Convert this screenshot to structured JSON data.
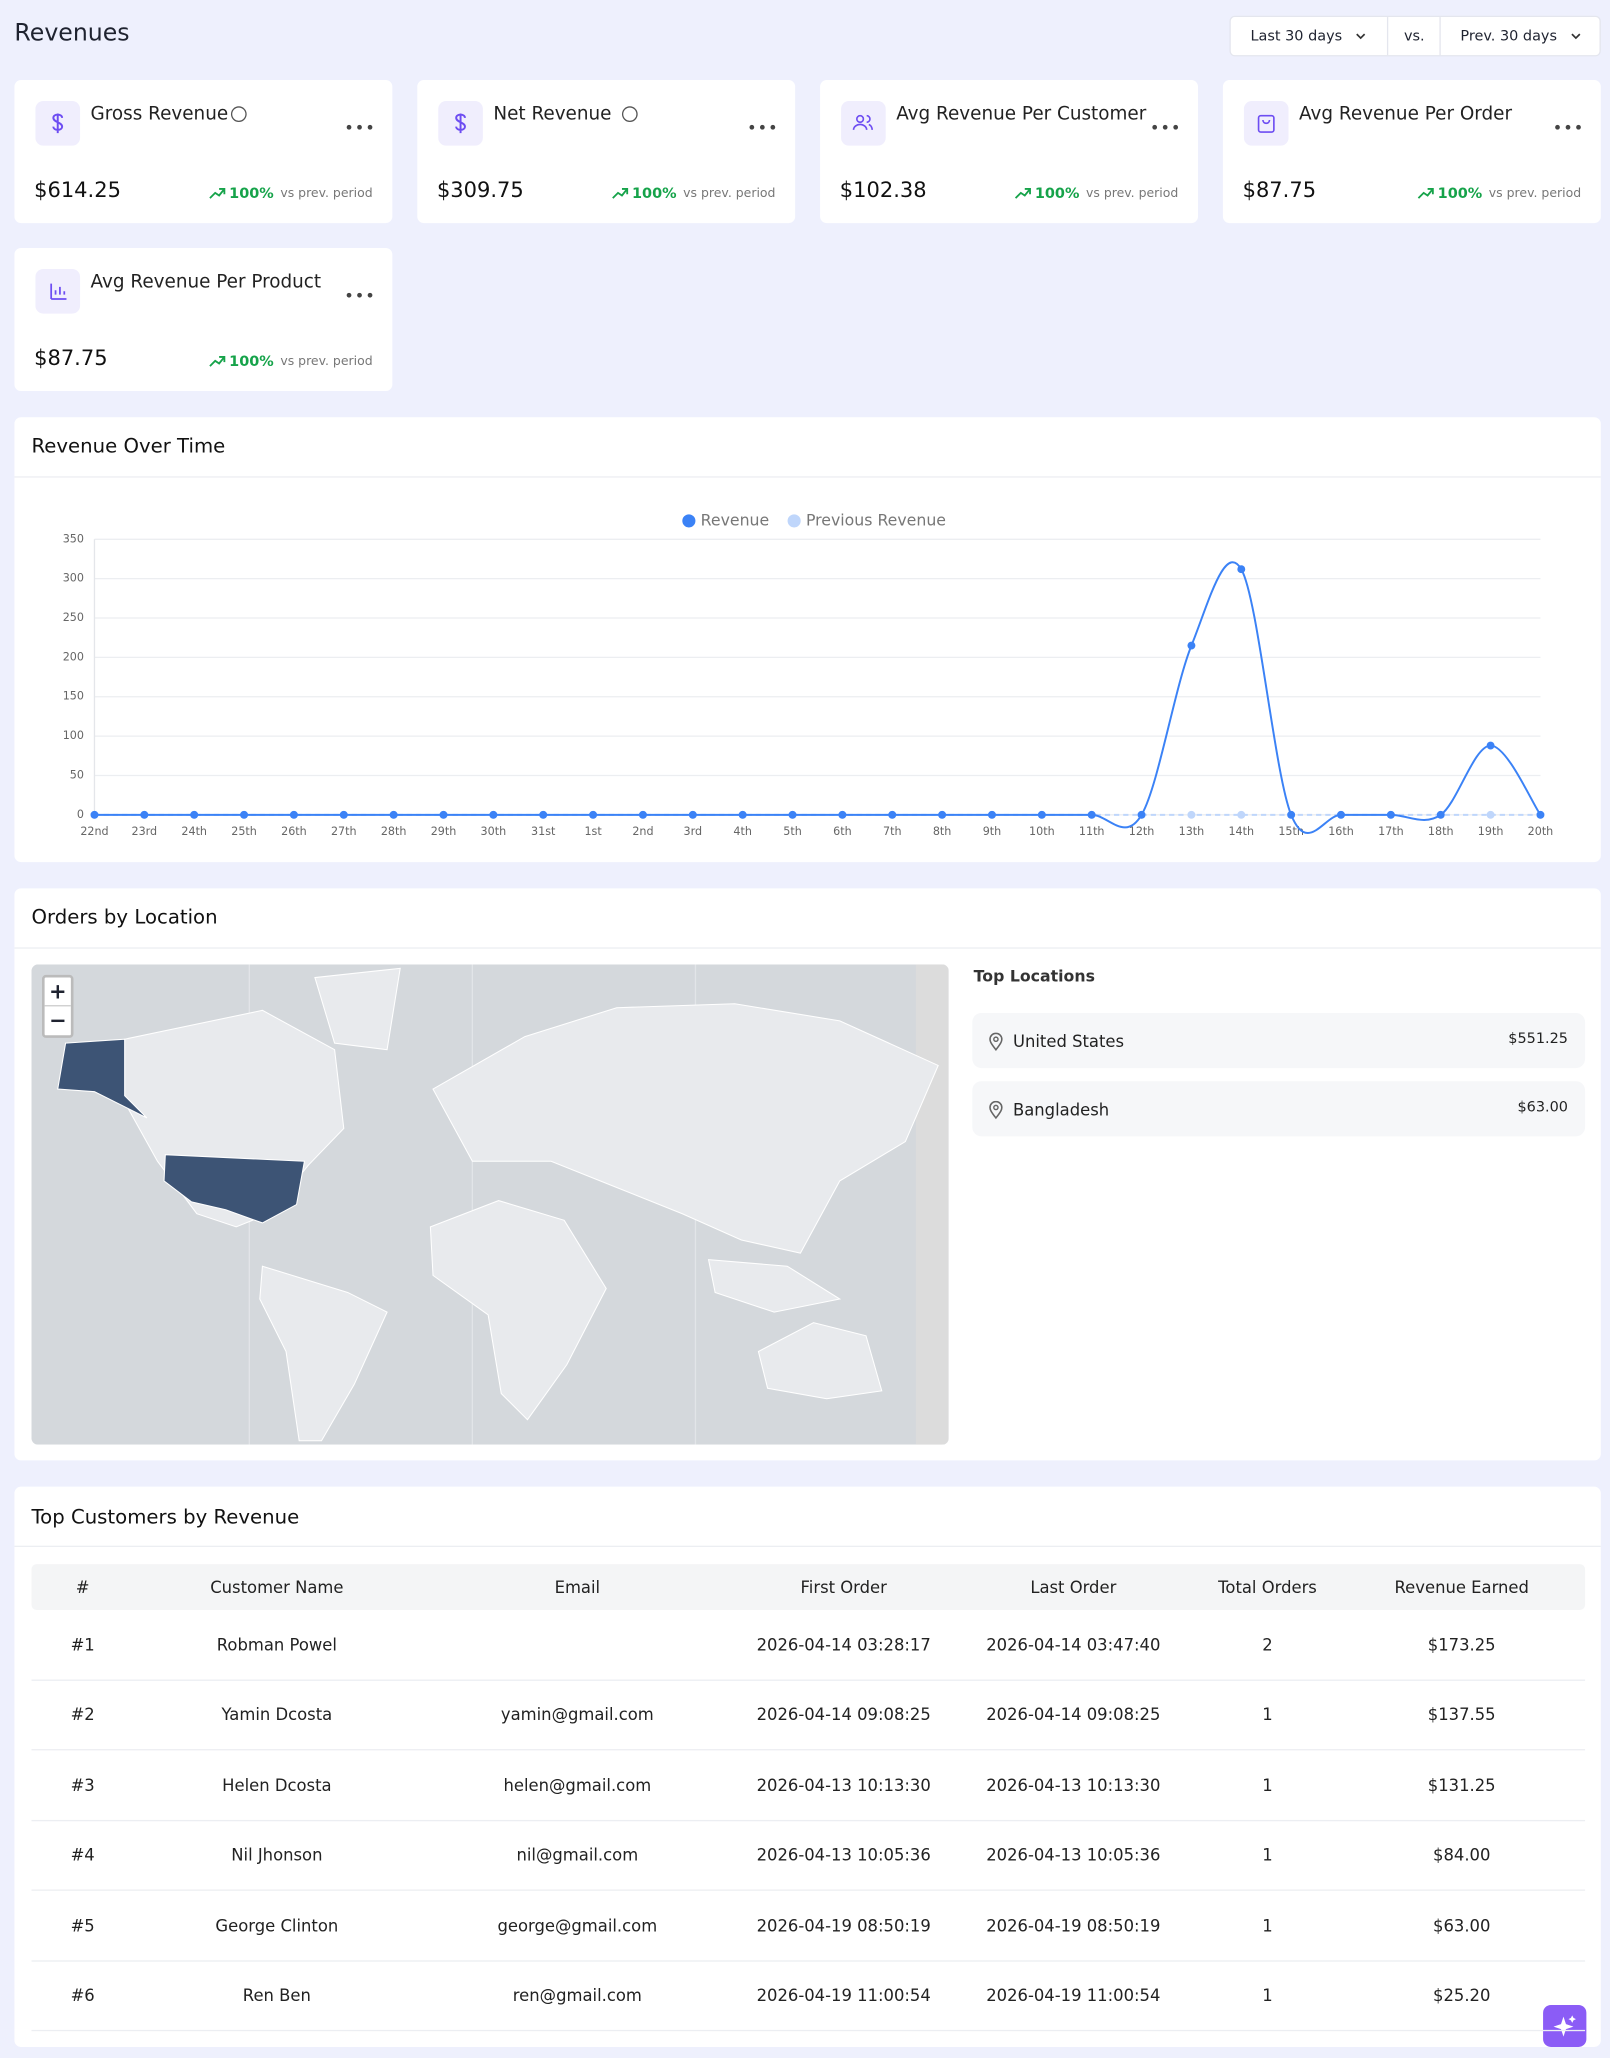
{
  "header": {
    "title": "Revenues",
    "range": "Last 30 days",
    "vs": "vs.",
    "compare": "Prev. 30 days"
  },
  "kpis": [
    {
      "label": "Gross Revenue",
      "value": "$614.25",
      "change": "100%",
      "change_note": "vs prev. period"
    },
    {
      "label": "Net Revenue",
      "value": "$309.75",
      "change": "100%",
      "change_note": "vs prev. period"
    },
    {
      "label": "Avg Revenue Per Customer",
      "value": "$102.38",
      "change": "100%",
      "change_note": "vs prev. period"
    },
    {
      "label": "Avg Revenue Per Order",
      "value": "$87.75",
      "change": "100%",
      "change_note": "vs prev. period"
    },
    {
      "label": "Avg Revenue Per Product",
      "value": "$87.75",
      "change": "100%",
      "change_note": "vs prev. period"
    }
  ],
  "chart_data": {
    "type": "line",
    "title": "Revenue Over Time",
    "categories": [
      "22nd",
      "23rd",
      "24th",
      "25th",
      "26th",
      "27th",
      "28th",
      "29th",
      "30th",
      "31st",
      "1st",
      "2nd",
      "3rd",
      "4th",
      "5th",
      "6th",
      "7th",
      "8th",
      "9th",
      "10th",
      "11th",
      "12th",
      "13th",
      "14th",
      "15th",
      "16th",
      "17th",
      "18th",
      "19th",
      "20th"
    ],
    "series": [
      {
        "name": "Revenue",
        "color": "#3b82f6",
        "values": [
          0,
          0,
          0,
          0,
          0,
          0,
          0,
          0,
          0,
          0,
          0,
          0,
          0,
          0,
          0,
          0,
          0,
          0,
          0,
          0,
          0,
          0,
          215,
          312,
          0,
          0,
          0,
          0,
          88,
          0
        ]
      },
      {
        "name": "Previous Revenue",
        "color": "#bfd6fb",
        "values": [
          0,
          0,
          0,
          0,
          0,
          0,
          0,
          0,
          0,
          0,
          0,
          0,
          0,
          0,
          0,
          0,
          0,
          0,
          0,
          0,
          0,
          0,
          0,
          0,
          0,
          0,
          0,
          0,
          0,
          0
        ]
      }
    ],
    "ylim": [
      0,
      350
    ],
    "yticks": [
      0,
      50,
      100,
      150,
      200,
      250,
      300,
      350
    ],
    "grid": true
  },
  "locations": {
    "title": "Orders by Location",
    "zoom_in": "+",
    "zoom_out": "−",
    "list_title": "Top Locations",
    "items": [
      {
        "name": "United States",
        "value": "$551.25"
      },
      {
        "name": "Bangladesh",
        "value": "$63.00"
      }
    ]
  },
  "customers": {
    "title": "Top Customers by Revenue",
    "columns": [
      "#",
      "Customer Name",
      "Email",
      "First Order",
      "Last Order",
      "Total Orders",
      "Revenue Earned"
    ],
    "rows": [
      {
        "rank": "#1",
        "name": "Robman Powel",
        "first": "2026-04-14 03:28:17",
        "last": "2026-04-14 03:47:40",
        "orders": 2,
        "revenue": "$173.25"
      },
      {
        "rank": "#2",
        "name": "Yamin Dcosta",
        "email": "yamin@gmail.com",
        "first": "2026-04-14 09:08:25",
        "last": "2026-04-14 09:08:25",
        "orders": 1,
        "revenue": "$137.55"
      },
      {
        "rank": "#3",
        "name": "Helen Dcosta",
        "email": "helen@gmail.com",
        "first": "2026-04-13 10:13:30",
        "last": "2026-04-13 10:13:30",
        "orders": 1,
        "revenue": "$131.25"
      },
      {
        "rank": "#4",
        "name": "Nil Jhonson",
        "email": "nil@gmail.com",
        "first": "2026-04-13 10:05:36",
        "last": "2026-04-13 10:05:36",
        "orders": 1,
        "revenue": "$84.00"
      },
      {
        "rank": "#5",
        "name": "George Clinton",
        "email": "george@gmail.com",
        "first": "2026-04-19 08:50:19",
        "last": "2026-04-19 08:50:19",
        "orders": 1,
        "revenue": "$63.00"
      },
      {
        "rank": "#6",
        "name": "Ren Ben",
        "email": "ren@gmail.com",
        "first": "2026-04-19 11:00:54",
        "last": "2026-04-19 11:00:54",
        "orders": 1,
        "revenue": "$25.20"
      }
    ]
  }
}
